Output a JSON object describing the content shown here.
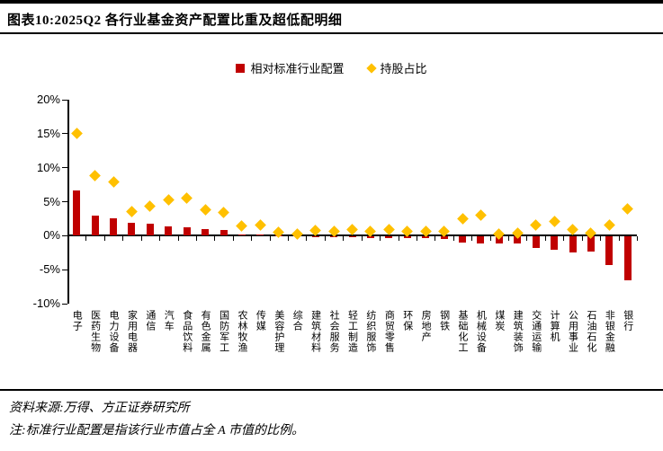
{
  "title": "图表10:2025Q2 各行业基金资产配置比重及超低配明细",
  "colors": {
    "bar": "#C00000",
    "diamond": "#FFC000",
    "axis": "#000000"
  },
  "legend": [
    {
      "label": "相对标准行业配置",
      "marker": "square",
      "color": "#C00000"
    },
    {
      "label": "持股占比",
      "marker": "diamond",
      "color": "#FFC000"
    }
  ],
  "footer": {
    "source": "资料来源:万得、方正证券研究所",
    "note": "注:标准行业配置是指该行业市值占全 A 市值的比例。"
  },
  "chart_data": {
    "type": "bar",
    "title": "2025Q2 各行业基金资产配置比重及超低配明细",
    "categories": [
      "电子",
      "医药生物",
      "电力设备",
      "家用电器",
      "通信",
      "汽车",
      "食品饮料",
      "有色金属",
      "国防军工",
      "农林牧渔",
      "传媒",
      "美容护理",
      "综合",
      "建筑材料",
      "社会服务",
      "轻工制造",
      "纺织服饰",
      "商贸零售",
      "环保",
      "房地产",
      "钢铁",
      "基础化工",
      "机械设备",
      "煤炭",
      "建筑装饰",
      "交通运输",
      "计算机",
      "公用事业",
      "石油石化",
      "非银金融",
      "银行"
    ],
    "series": [
      {
        "name": "相对标准行业配置",
        "type": "bar",
        "values": [
          6.7,
          3.0,
          2.6,
          1.9,
          1.7,
          1.3,
          1.2,
          1.0,
          0.9,
          0.2,
          0.15,
          0.1,
          0.0,
          -0.1,
          -0.15,
          -0.2,
          -0.3,
          -0.3,
          -0.4,
          -0.4,
          -0.5,
          -1.0,
          -1.1,
          -1.2,
          -1.2,
          -1.8,
          -2.1,
          -2.5,
          -2.4,
          -4.3,
          -6.6
        ]
      },
      {
        "name": "持股占比",
        "type": "scatter",
        "values": [
          15.0,
          8.8,
          7.9,
          3.6,
          4.4,
          5.2,
          5.5,
          3.8,
          3.4,
          1.4,
          1.6,
          0.5,
          0.2,
          0.8,
          0.6,
          0.9,
          0.6,
          0.9,
          0.6,
          0.7,
          0.6,
          2.5,
          3.0,
          0.3,
          0.4,
          1.6,
          2.1,
          0.9,
          0.4,
          1.5,
          3.9
        ]
      }
    ],
    "xlabel": "",
    "ylabel": "",
    "ylim": [
      -10,
      20
    ],
    "yticks": [
      20,
      15,
      10,
      5,
      0,
      -5,
      -10
    ],
    "ytick_labels": [
      "20%",
      "15%",
      "10%",
      "5%",
      "0%",
      "-5%",
      "-10%"
    ],
    "grid": false,
    "legend_position": "top"
  }
}
